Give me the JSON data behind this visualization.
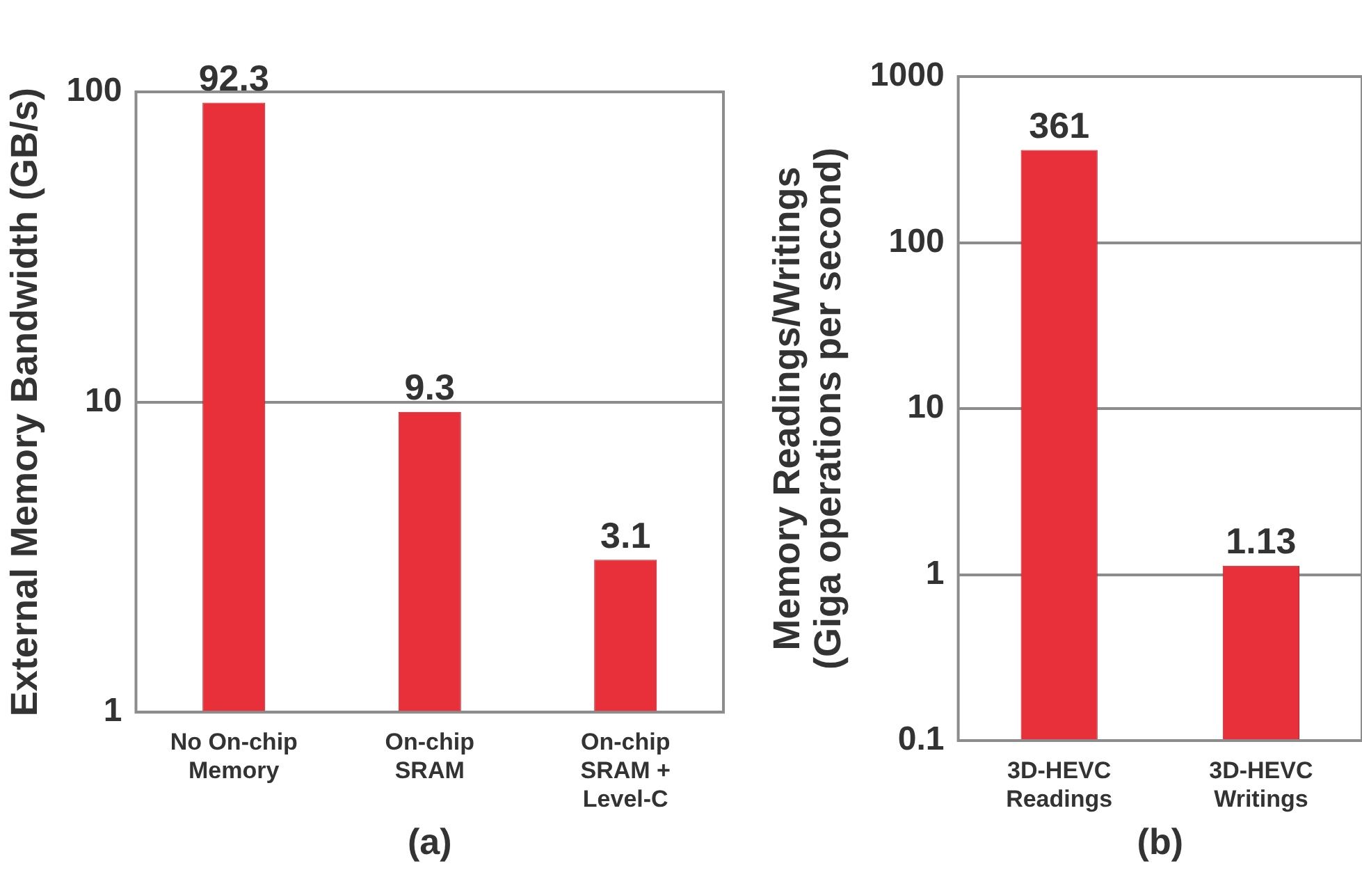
{
  "chart_data": [
    {
      "type": "bar",
      "xlabel": "(a)",
      "ylabel": "External Memory Bandwidth (GB/s)",
      "categories": [
        "No On-chip\nMemory",
        "On-chip\nSRAM",
        "On-chip\nSRAM +\nLevel-C"
      ],
      "values": [
        92.3,
        9.3,
        3.1
      ],
      "color": "#e8303a",
      "log": true,
      "ylim": [
        1,
        100
      ],
      "yticks": [
        1,
        10,
        100
      ],
      "grid": "y",
      "data_labels": true
    },
    {
      "type": "bar",
      "xlabel": "(b)",
      "ylabel": "Memory Readings/Writings\n(Giga operations per second)",
      "categories": [
        "3D-HEVC\nReadings",
        "3D-HEVC\nWritings"
      ],
      "values": [
        361,
        1.13
      ],
      "color": "#e8303a",
      "log": true,
      "ylim": [
        0.1,
        1000
      ],
      "yticks": [
        0.1,
        1,
        10,
        100,
        1000
      ],
      "grid": "y",
      "data_labels": true
    }
  ]
}
